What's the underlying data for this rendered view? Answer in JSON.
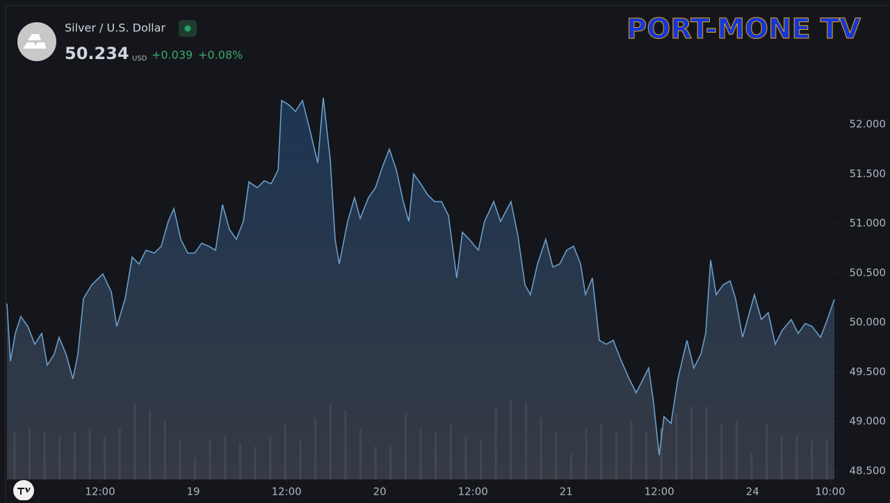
{
  "header": {
    "symbol": "Silver / U.S. Dollar",
    "price": "50.234",
    "currency": "USD",
    "change": "+0.039",
    "change_percent": "+0.08%"
  },
  "logo": "PORT-MONE TV",
  "chart_data": {
    "type": "area",
    "color": "#6b9fcc",
    "grid": false,
    "x": [
      0,
      0.45,
      1.07,
      1.79,
      2.69,
      3.58,
      4.48,
      5.19,
      6.09,
      6.71,
      7.61,
      8.5,
      9.13,
      9.85,
      10.92,
      12.35,
      13.43,
      14.15,
      15.22,
      16.12,
      17.01,
      17.91,
      18.98,
      19.87,
      20.77,
      21.49,
      22.38,
      23.28,
      24.17,
      25.07,
      25.96,
      26.86,
      27.75,
      28.65,
      29.54,
      30.44,
      31.16,
      32.23,
      33.13,
      34.02,
      34.92,
      35.36,
      36.26,
      37.15,
      38.05,
      38.95,
      40.02,
      40.73,
      41.63,
      42.26,
      42.79,
      43.87,
      44.76,
      45.48,
      46.55,
      47.45,
      48.35,
      49.24,
      50.14,
      51.03,
      51.75,
      52.37,
      53.27,
      54.16,
      55.06,
      55.95,
      56.85,
      57.92,
      58.64,
      59.53,
      60.7,
      61.5,
      62.67,
      63.56,
      64.9,
      65.8,
      66.7,
      67.41,
      68.31,
      69.38,
      70.28,
      71.17,
      72.07,
      72.96,
      73.86,
      74.49,
      75.38,
      76.28,
      77.17,
      78.07,
      78.96,
      80.13,
      81.02,
      81.92,
      82.63,
      83.26,
      83.98,
      84.6,
      85.5,
      86.39,
      87.56,
      88.45,
      89.35,
      89.97,
      90.6,
      91.32,
      92.21,
      93.11,
      93.82,
      94.72,
      95.35,
      96.24,
      97.14,
      98.03,
      98.93,
      99.82,
      100.99,
      101.88,
      102.78,
      103.67,
      104.75,
      105.64,
      106.54
    ],
    "values": [
      50.19,
      49.61,
      49.89,
      50.06,
      49.96,
      49.78,
      49.89,
      49.57,
      49.68,
      49.85,
      49.68,
      49.43,
      49.68,
      50.24,
      50.38,
      50.49,
      50.31,
      49.96,
      50.24,
      50.66,
      50.59,
      50.73,
      50.7,
      50.77,
      51.02,
      51.15,
      50.84,
      50.7,
      50.7,
      50.8,
      50.77,
      50.73,
      51.19,
      50.94,
      50.84,
      51.02,
      51.42,
      51.36,
      51.43,
      51.4,
      51.54,
      52.24,
      52.2,
      52.13,
      52.24,
      51.96,
      51.61,
      52.27,
      51.64,
      50.84,
      50.59,
      51.02,
      51.26,
      51.05,
      51.26,
      51.36,
      51.57,
      51.75,
      51.54,
      51.22,
      51.02,
      51.5,
      51.4,
      51.29,
      51.22,
      51.22,
      51.08,
      50.45,
      50.91,
      50.84,
      50.73,
      51.02,
      51.22,
      51.02,
      51.22,
      50.87,
      50.38,
      50.28,
      50.59,
      50.84,
      50.56,
      50.59,
      50.73,
      50.77,
      50.59,
      50.28,
      50.45,
      49.82,
      49.78,
      49.82,
      49.64,
      49.43,
      49.29,
      49.43,
      49.54,
      49.19,
      48.66,
      49.05,
      48.98,
      49.43,
      49.82,
      49.54,
      49.68,
      49.89,
      50.63,
      50.28,
      50.38,
      50.42,
      50.24,
      49.85,
      50.03,
      50.28,
      50.03,
      50.1,
      49.78,
      49.92,
      50.03,
      49.89,
      49.99,
      49.96,
      49.85,
      50.03,
      50.234
    ],
    "xlim": [
      0,
      106.54
    ],
    "xticks": [
      {
        "value": 12,
        "label": "12:00"
      },
      {
        "value": 24,
        "label": "19"
      },
      {
        "value": 36,
        "label": "12:00"
      },
      {
        "value": 48,
        "label": "20"
      },
      {
        "value": 60,
        "label": "12:00"
      },
      {
        "value": 72,
        "label": "21"
      },
      {
        "value": 84,
        "label": "12:00"
      },
      {
        "value": 96,
        "label": "24"
      },
      {
        "value": 106,
        "label": "10:00"
      }
    ],
    "ylim": [
      48.416,
      53.185
    ],
    "yticks": [
      {
        "value": 48.5,
        "label": "48.500"
      },
      {
        "value": 49,
        "label": "49.000"
      },
      {
        "value": 49.5,
        "label": "49.500"
      },
      {
        "value": 50,
        "label": "50.000"
      },
      {
        "value": 50.5,
        "label": "50.500"
      },
      {
        "value": 51,
        "label": "51.000"
      },
      {
        "value": 51.5,
        "label": "51.500"
      },
      {
        "value": 52,
        "label": "52.000"
      }
    ],
    "volume": {
      "color": "#5c7a70",
      "values": [
        65,
        70,
        65,
        60,
        65,
        70,
        60,
        70,
        105,
        95,
        80,
        55,
        30,
        55,
        60,
        50,
        45,
        60,
        75,
        55,
        85,
        105,
        95,
        70,
        45,
        45,
        90,
        70,
        65,
        75,
        60,
        55,
        100,
        110,
        105,
        85,
        65,
        35,
        70,
        75,
        65,
        80,
        65,
        70,
        90,
        100,
        100,
        75,
        80,
        35,
        75,
        60,
        60,
        55,
        55
      ]
    }
  }
}
